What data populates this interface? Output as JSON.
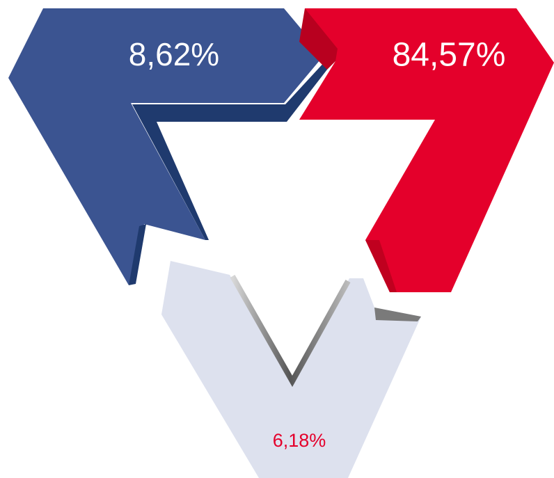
{
  "segments": [
    {
      "label": "8,62%"
    },
    {
      "label": "84,57%"
    },
    {
      "label": "6,18%"
    }
  ]
}
